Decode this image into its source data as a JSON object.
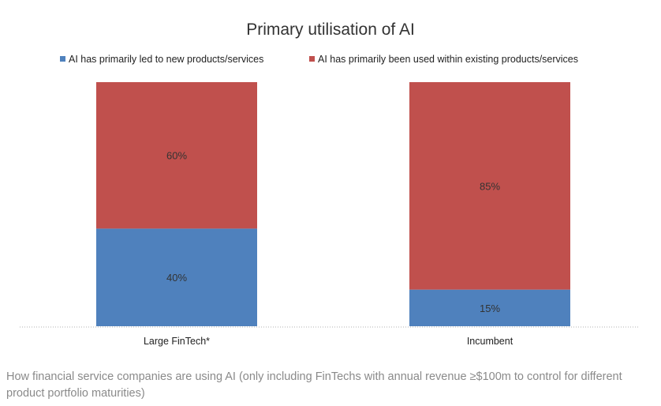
{
  "chart_data": {
    "type": "bar",
    "stacked": true,
    "title": "Primary utilisation of AI",
    "categories": [
      "Large FinTech*",
      "Incumbent"
    ],
    "series": [
      {
        "name": "AI has primarily led to new products/services",
        "values": [
          40,
          15
        ],
        "labels": [
          "40%",
          "15%"
        ],
        "color": "#4f81bd"
      },
      {
        "name": "AI has primarily been used within existing products/services",
        "values": [
          60,
          85
        ],
        "labels": [
          "60%",
          "85%"
        ],
        "color": "#c0504d"
      }
    ],
    "ylim": [
      0,
      100
    ],
    "grid": false,
    "legend_position": "top"
  },
  "caption": "How financial service companies are using AI (only including FinTechs with annual revenue ≥$100m to control for different product portfolio maturities)"
}
